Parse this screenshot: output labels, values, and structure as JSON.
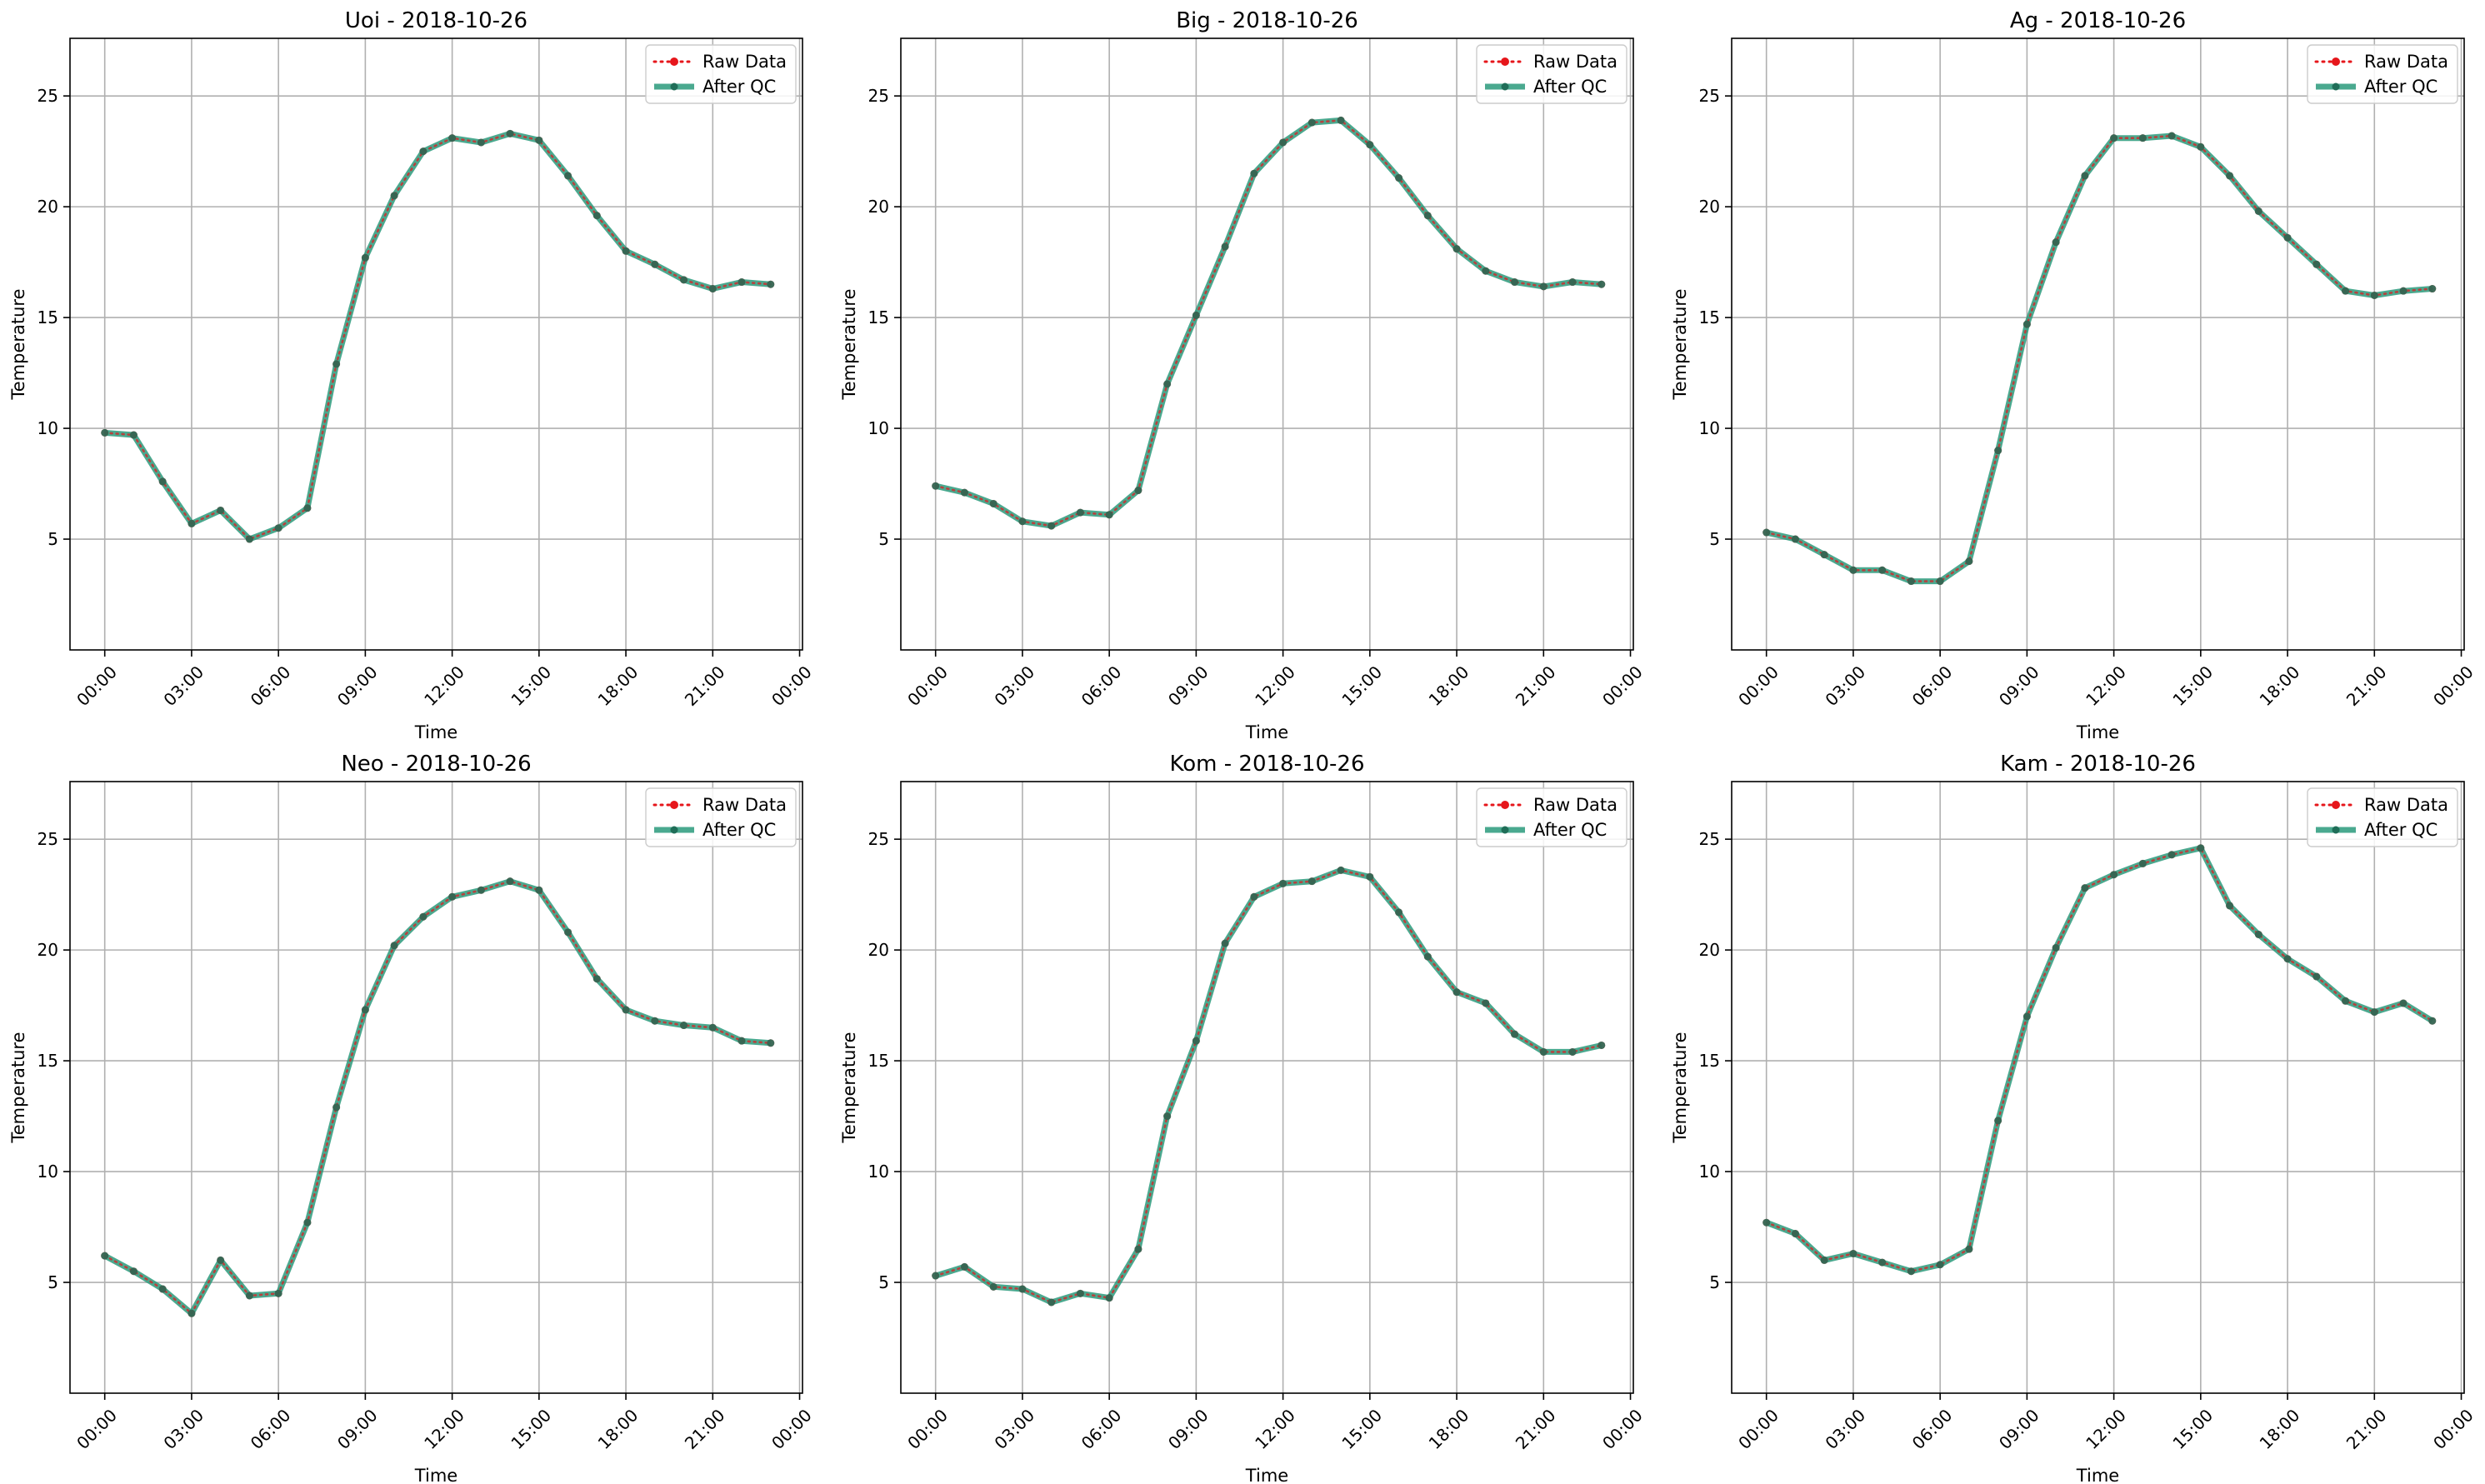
{
  "legend": {
    "raw_label": "Raw Data",
    "qc_label": "After QC"
  },
  "colors": {
    "raw": "#e6161b",
    "qc": "#2a9a7b",
    "grid": "#b0b0b0",
    "frame": "#000000"
  },
  "chart_data": [
    {
      "type": "line",
      "title": "Uoi - 2018-10-26",
      "xlabel": "Time",
      "ylabel": "Temperature",
      "x_ticks": [
        "00:00",
        "03:00",
        "06:00",
        "09:00",
        "12:00",
        "15:00",
        "18:00",
        "21:00",
        "00:00"
      ],
      "y_ticks": [
        5,
        10,
        15,
        20,
        25
      ],
      "xlim_hours": [
        -1.2,
        24.1
      ],
      "ylim": [
        0,
        27.6
      ],
      "grid": true,
      "legend_position": "top-right",
      "x_hours": [
        0,
        1,
        2,
        3,
        4,
        5,
        6,
        7,
        8,
        9,
        10,
        11,
        12,
        13,
        14,
        15,
        16,
        17,
        18,
        19,
        20,
        21,
        22,
        23
      ],
      "series": [
        {
          "name": "Raw Data",
          "values": [
            9.8,
            9.7,
            7.6,
            5.7,
            6.3,
            5.0,
            5.5,
            6.4,
            12.9,
            17.7,
            20.5,
            22.5,
            23.1,
            22.9,
            23.3,
            23.0,
            21.4,
            19.6,
            18.0,
            17.4,
            16.7,
            16.3,
            16.6,
            16.5
          ]
        },
        {
          "name": "After QC",
          "values": [
            9.8,
            9.7,
            7.6,
            5.7,
            6.3,
            5.0,
            5.5,
            6.4,
            12.9,
            17.7,
            20.5,
            22.5,
            23.1,
            22.9,
            23.3,
            23.0,
            21.4,
            19.6,
            18.0,
            17.4,
            16.7,
            16.3,
            16.6,
            16.5
          ]
        }
      ]
    },
    {
      "type": "line",
      "title": "Big - 2018-10-26",
      "xlabel": "Time",
      "ylabel": "Temperature",
      "x_ticks": [
        "00:00",
        "03:00",
        "06:00",
        "09:00",
        "12:00",
        "15:00",
        "18:00",
        "21:00",
        "00:00"
      ],
      "y_ticks": [
        5,
        10,
        15,
        20,
        25
      ],
      "xlim_hours": [
        -1.2,
        24.1
      ],
      "ylim": [
        0,
        27.6
      ],
      "grid": true,
      "legend_position": "top-right",
      "x_hours": [
        0,
        1,
        2,
        3,
        4,
        5,
        6,
        7,
        8,
        9,
        10,
        11,
        12,
        13,
        14,
        15,
        16,
        17,
        18,
        19,
        20,
        21,
        22,
        23
      ],
      "series": [
        {
          "name": "Raw Data",
          "values": [
            7.4,
            7.1,
            6.6,
            5.8,
            5.6,
            6.2,
            6.1,
            7.2,
            12.0,
            15.1,
            18.2,
            21.5,
            22.9,
            23.8,
            23.9,
            22.8,
            21.3,
            19.6,
            18.1,
            17.1,
            16.6,
            16.4,
            16.6,
            16.5
          ]
        },
        {
          "name": "After QC",
          "values": [
            7.4,
            7.1,
            6.6,
            5.8,
            5.6,
            6.2,
            6.1,
            7.2,
            12.0,
            15.1,
            18.2,
            21.5,
            22.9,
            23.8,
            23.9,
            22.8,
            21.3,
            19.6,
            18.1,
            17.1,
            16.6,
            16.4,
            16.6,
            16.5
          ]
        }
      ]
    },
    {
      "type": "line",
      "title": "Ag - 2018-10-26",
      "xlabel": "Time",
      "ylabel": "Temperature",
      "x_ticks": [
        "00:00",
        "03:00",
        "06:00",
        "09:00",
        "12:00",
        "15:00",
        "18:00",
        "21:00",
        "00:00"
      ],
      "y_ticks": [
        5,
        10,
        15,
        20,
        25
      ],
      "xlim_hours": [
        -1.2,
        24.1
      ],
      "ylim": [
        0,
        27.6
      ],
      "grid": true,
      "legend_position": "top-right",
      "x_hours": [
        0,
        1,
        2,
        3,
        4,
        5,
        6,
        7,
        8,
        9,
        10,
        11,
        12,
        13,
        14,
        15,
        16,
        17,
        18,
        19,
        20,
        21,
        22,
        23
      ],
      "series": [
        {
          "name": "Raw Data",
          "values": [
            5.3,
            5.0,
            4.3,
            3.6,
            3.6,
            3.1,
            3.1,
            4.0,
            9.0,
            14.7,
            18.4,
            21.4,
            23.1,
            23.1,
            23.2,
            22.7,
            21.4,
            19.8,
            18.6,
            17.4,
            16.2,
            16.0,
            16.2,
            16.3
          ]
        },
        {
          "name": "After QC",
          "values": [
            5.3,
            5.0,
            4.3,
            3.6,
            3.6,
            3.1,
            3.1,
            4.0,
            9.0,
            14.7,
            18.4,
            21.4,
            23.1,
            23.1,
            23.2,
            22.7,
            21.4,
            19.8,
            18.6,
            17.4,
            16.2,
            16.0,
            16.2,
            16.3
          ]
        }
      ]
    },
    {
      "type": "line",
      "title": "Neo - 2018-10-26",
      "xlabel": "Time",
      "ylabel": "Temperature",
      "x_ticks": [
        "00:00",
        "03:00",
        "06:00",
        "09:00",
        "12:00",
        "15:00",
        "18:00",
        "21:00",
        "00:00"
      ],
      "y_ticks": [
        5,
        10,
        15,
        20,
        25
      ],
      "xlim_hours": [
        -1.2,
        24.1
      ],
      "ylim": [
        0,
        27.6
      ],
      "grid": true,
      "legend_position": "top-right",
      "x_hours": [
        0,
        1,
        2,
        3,
        4,
        5,
        6,
        7,
        8,
        9,
        10,
        11,
        12,
        13,
        14,
        15,
        16,
        17,
        18,
        19,
        20,
        21,
        22,
        23
      ],
      "series": [
        {
          "name": "Raw Data",
          "values": [
            6.2,
            5.5,
            4.7,
            3.6,
            6.0,
            4.4,
            4.5,
            7.7,
            12.9,
            17.3,
            20.2,
            21.5,
            22.4,
            22.7,
            23.1,
            22.7,
            20.8,
            18.7,
            17.3,
            16.8,
            16.6,
            16.5,
            15.9,
            15.8
          ]
        },
        {
          "name": "After QC",
          "values": [
            6.2,
            5.5,
            4.7,
            3.6,
            6.0,
            4.4,
            4.5,
            7.7,
            12.9,
            17.3,
            20.2,
            21.5,
            22.4,
            22.7,
            23.1,
            22.7,
            20.8,
            18.7,
            17.3,
            16.8,
            16.6,
            16.5,
            15.9,
            15.8
          ]
        }
      ]
    },
    {
      "type": "line",
      "title": "Kom - 2018-10-26",
      "xlabel": "Time",
      "ylabel": "Temperature",
      "x_ticks": [
        "00:00",
        "03:00",
        "06:00",
        "09:00",
        "12:00",
        "15:00",
        "18:00",
        "21:00",
        "00:00"
      ],
      "y_ticks": [
        5,
        10,
        15,
        20,
        25
      ],
      "xlim_hours": [
        -1.2,
        24.1
      ],
      "ylim": [
        0,
        27.6
      ],
      "grid": true,
      "legend_position": "top-right",
      "x_hours": [
        0,
        1,
        2,
        3,
        4,
        5,
        6,
        7,
        8,
        9,
        10,
        11,
        12,
        13,
        14,
        15,
        16,
        17,
        18,
        19,
        20,
        21,
        22,
        23
      ],
      "series": [
        {
          "name": "Raw Data",
          "values": [
            5.3,
            5.7,
            4.8,
            4.7,
            4.1,
            4.5,
            4.3,
            6.5,
            12.5,
            15.9,
            20.3,
            22.4,
            23.0,
            23.1,
            23.6,
            23.3,
            21.7,
            19.7,
            18.1,
            17.6,
            16.2,
            15.4,
            15.4,
            15.7
          ]
        },
        {
          "name": "After QC",
          "values": [
            5.3,
            5.7,
            4.8,
            4.7,
            4.1,
            4.5,
            4.3,
            6.5,
            12.5,
            15.9,
            20.3,
            22.4,
            23.0,
            23.1,
            23.6,
            23.3,
            21.7,
            19.7,
            18.1,
            17.6,
            16.2,
            15.4,
            15.4,
            15.7
          ]
        }
      ]
    },
    {
      "type": "line",
      "title": "Kam - 2018-10-26",
      "xlabel": "Time",
      "ylabel": "Temperature",
      "x_ticks": [
        "00:00",
        "03:00",
        "06:00",
        "09:00",
        "12:00",
        "15:00",
        "18:00",
        "21:00",
        "00:00"
      ],
      "y_ticks": [
        5,
        10,
        15,
        20,
        25
      ],
      "xlim_hours": [
        -1.2,
        24.1
      ],
      "ylim": [
        0,
        27.6
      ],
      "grid": true,
      "legend_position": "top-right",
      "x_hours": [
        0,
        1,
        2,
        3,
        4,
        5,
        6,
        7,
        8,
        9,
        10,
        11,
        12,
        13,
        14,
        15,
        16,
        17,
        18,
        19,
        20,
        21,
        22,
        23
      ],
      "series": [
        {
          "name": "Raw Data",
          "values": [
            7.7,
            7.2,
            6.0,
            6.3,
            5.9,
            5.5,
            5.8,
            6.5,
            12.3,
            17.0,
            20.1,
            22.8,
            23.4,
            23.9,
            24.3,
            24.6,
            22.0,
            20.7,
            19.6,
            18.8,
            17.7,
            17.2,
            17.6,
            16.8
          ]
        },
        {
          "name": "After QC",
          "values": [
            7.7,
            7.2,
            6.0,
            6.3,
            5.9,
            5.5,
            5.8,
            6.5,
            12.3,
            17.0,
            20.1,
            22.8,
            23.4,
            23.9,
            24.3,
            24.6,
            22.0,
            20.7,
            19.6,
            18.8,
            17.7,
            17.2,
            17.6,
            16.8
          ]
        }
      ]
    }
  ]
}
